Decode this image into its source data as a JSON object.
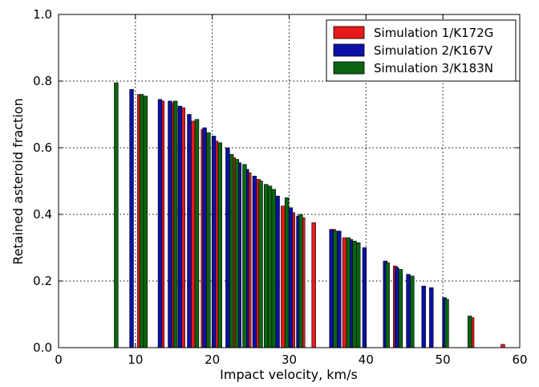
{
  "chart_data": {
    "type": "bar",
    "title": "",
    "xlabel": "Impact velocity, km/s",
    "ylabel": "Retained asteroid fraction",
    "xlim": [
      0,
      60
    ],
    "ylim": [
      0,
      1.0
    ],
    "xticks": [
      "0",
      "10",
      "20",
      "30",
      "40",
      "50",
      "60"
    ],
    "yticks": [
      "0.0",
      "0.2",
      "0.4",
      "0.6",
      "0.8",
      "1.0"
    ],
    "grid": true,
    "legend_position": "top-right",
    "bar_width": 0.5,
    "series": [
      {
        "name": "Simulation 1/K172G",
        "color": "#e8191c",
        "x": [
          10.5,
          13.5,
          14.8,
          16.2,
          17.5,
          18.8,
          20.5,
          22.8,
          24.8,
          26.0,
          29.2,
          30.5,
          31.8,
          33.2,
          35.8,
          37.2,
          43.8,
          45.8,
          53.8,
          57.8
        ],
        "y": [
          0.76,
          0.74,
          0.735,
          0.72,
          0.68,
          0.655,
          0.62,
          0.57,
          0.525,
          0.505,
          0.425,
          0.405,
          0.39,
          0.375,
          0.355,
          0.33,
          0.245,
          0.21,
          0.09,
          0.01
        ]
      },
      {
        "name": "Simulation 2/K167V",
        "color": "#0c10a6",
        "x": [
          9.5,
          13.2,
          14.5,
          15.8,
          17.0,
          19.0,
          20.2,
          22.0,
          23.5,
          24.5,
          25.5,
          28.5,
          30.2,
          31.2,
          35.5,
          36.5,
          38.0,
          39.8,
          42.5,
          44.0,
          45.5,
          47.5,
          48.5,
          50.2
        ],
        "y": [
          0.775,
          0.745,
          0.74,
          0.725,
          0.7,
          0.66,
          0.635,
          0.6,
          0.555,
          0.535,
          0.515,
          0.455,
          0.42,
          0.395,
          0.355,
          0.35,
          0.325,
          0.3,
          0.26,
          0.24,
          0.22,
          0.185,
          0.18,
          0.15
        ]
      },
      {
        "name": "Simulation 3/K183N",
        "color": "#0a6410",
        "x": [
          7.5,
          10.8,
          11.3,
          15.2,
          18.0,
          19.5,
          21.0,
          22.5,
          23.2,
          24.2,
          26.3,
          27.0,
          27.5,
          28.0,
          29.7,
          31.5,
          36.0,
          37.7,
          38.5,
          39.0,
          42.8,
          44.5,
          46.0,
          50.5,
          53.5
        ],
        "y": [
          0.795,
          0.76,
          0.755,
          0.74,
          0.685,
          0.645,
          0.615,
          0.58,
          0.565,
          0.55,
          0.5,
          0.49,
          0.485,
          0.475,
          0.45,
          0.4,
          0.35,
          0.33,
          0.32,
          0.315,
          0.255,
          0.235,
          0.215,
          0.145,
          0.095
        ]
      }
    ]
  }
}
